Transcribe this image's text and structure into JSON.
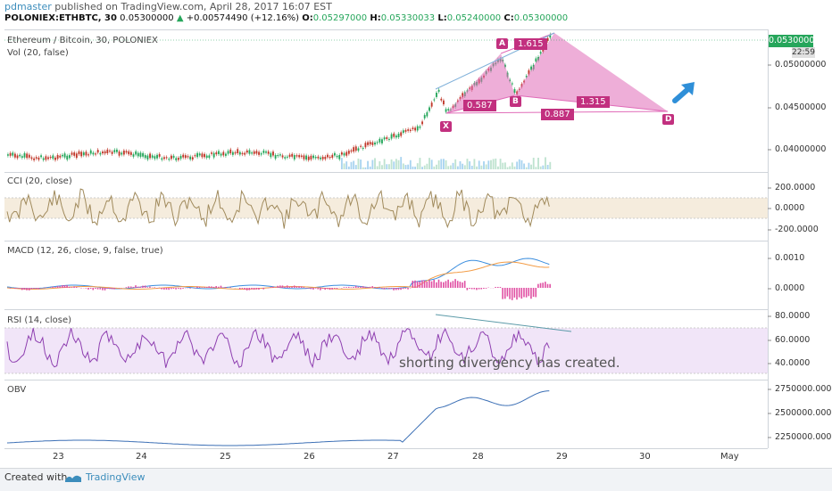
{
  "header": {
    "user": "pdmaster",
    "published": "published on TradingView.com, April 28, 2017 16:07 EST",
    "symbol": "POLONIEX:ETHBTC, 30",
    "last": "0.05300000",
    "change": "+0.00574490 (+12.16%)",
    "o_label": "O:",
    "o_val": "0.05297000",
    "h_label": "H:",
    "h_val": "0.05330033",
    "l_label": "L:",
    "l_val": "0.05240000",
    "c_label": "C:",
    "c_val": "0.05300000"
  },
  "main_pane": {
    "title": "Ethereum / Bitcoin, 30, POLONIEX",
    "vol": "Vol (20, false)",
    "price_badge": "0.05300000",
    "time_badge": "22:59",
    "axis": [
      "0.05000000",
      "0.04500000",
      "0.04000000"
    ],
    "points": {
      "x": "X",
      "a": "A",
      "b": "B",
      "d": "D"
    },
    "ratios": {
      "r1": "1.615",
      "r2": "0.587",
      "r3": "1.315",
      "r4": "0.887"
    }
  },
  "cci_pane": {
    "title": "CCI (20, close)",
    "axis": [
      "200.0000",
      "0.0000",
      "-200.0000"
    ]
  },
  "macd_pane": {
    "title": "MACD (12, 26, close, 9, false, true)",
    "axis": [
      "0.0010",
      "0.0000"
    ]
  },
  "rsi_pane": {
    "title": "RSI (14, close)",
    "axis": [
      "80.0000",
      "60.0000",
      "40.0000"
    ],
    "annotation": "shorting divergency has created."
  },
  "obv_pane": {
    "title": "OBV",
    "axis": [
      "2750000.0000",
      "2500000.0000",
      "2250000.0000"
    ]
  },
  "xaxis": [
    "23",
    "24",
    "25",
    "26",
    "27",
    "28",
    "29",
    "30",
    "May"
  ],
  "footer": {
    "created": "Created with",
    "brand": "TradingView"
  },
  "colors": {
    "harmonic": "#e06bb8",
    "harmonic_label": "#c2307f",
    "up": "#26a65b",
    "down": "#c0392b",
    "arrow": "#2f8fd8"
  }
}
